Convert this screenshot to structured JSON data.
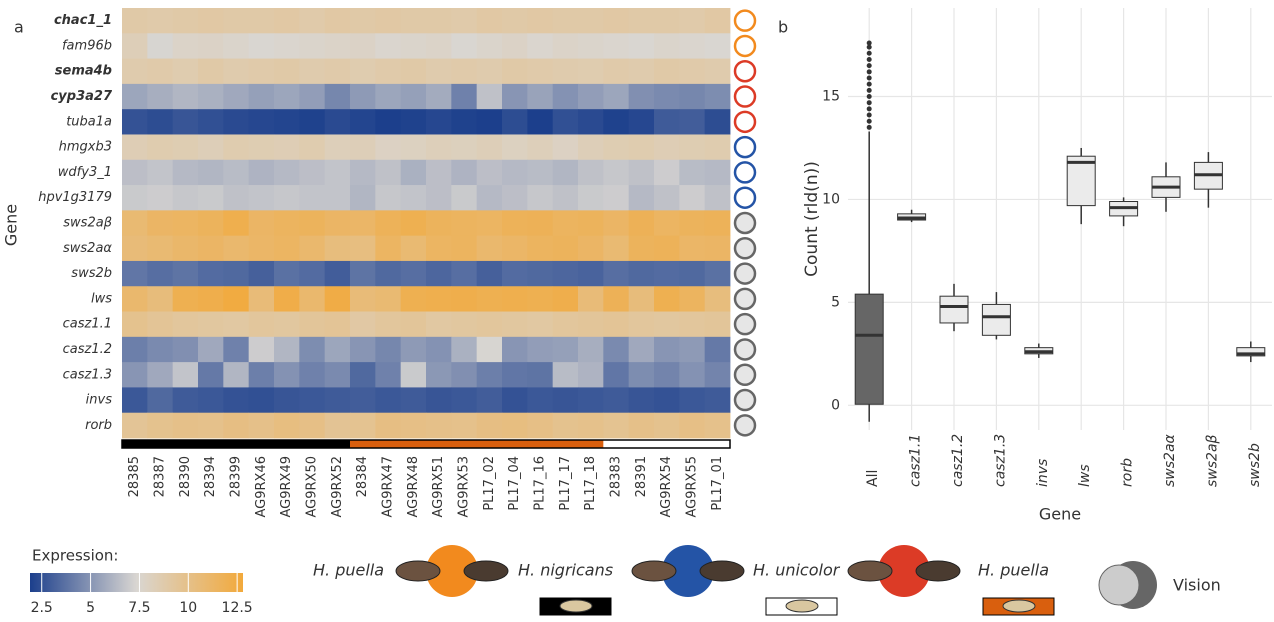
{
  "chart_data": [
    {
      "type": "heatmap",
      "panel_label": "a",
      "ylabel": "Gene",
      "genes": [
        "chac1_1",
        "fam96b",
        "sema4b",
        "cyp3a27",
        "tuba1a",
        "hmgxb3",
        "wdfy3_1",
        "hpv1g3179",
        "sws2aβ",
        "sws2aα",
        "sws2b",
        "lws",
        "casz1.1",
        "casz1.2",
        "casz1.3",
        "invs",
        "rorb"
      ],
      "bold": [
        true,
        false,
        true,
        true,
        false,
        false,
        false,
        false,
        false,
        false,
        false,
        false,
        false,
        false,
        false,
        false,
        false
      ],
      "ring_colors": [
        "#f28a1e",
        "#f28a1e",
        "#dc3b26",
        "#dc3b26",
        "#dc3b26",
        "#2454a6",
        "#2454a6",
        "#2454a6",
        "#666666",
        "#666666",
        "#666666",
        "#666666",
        "#666666",
        "#666666",
        "#666666",
        "#666666",
        "#666666"
      ],
      "samples": [
        "28385",
        "28387",
        "28390",
        "28394",
        "28399",
        "AG9RX46",
        "AG9RX49",
        "AG9RX50",
        "AG9RX52",
        "28384",
        "AG9RX47",
        "AG9RX48",
        "AG9RX51",
        "AG9RX53",
        "PL17_02",
        "PL17_04",
        "PL17_16",
        "PL17_17",
        "PL17_18",
        "28383",
        "28391",
        "AG9RX54",
        "AG9RX55",
        "PL17_01"
      ],
      "sample_colors": [
        "#000000",
        "#000000",
        "#000000",
        "#000000",
        "#000000",
        "#000000",
        "#000000",
        "#000000",
        "#000000",
        "#d95f0e",
        "#d95f0e",
        "#d95f0e",
        "#d95f0e",
        "#d95f0e",
        "#d95f0e",
        "#d95f0e",
        "#d95f0e",
        "#d95f0e",
        "#d95f0e",
        "#ffffff",
        "#ffffff",
        "#ffffff",
        "#ffffff",
        "#ffffff"
      ],
      "values": [
        [
          8.9,
          8.8,
          8.9,
          9.0,
          8.9,
          8.9,
          9.0,
          8.8,
          9.0,
          8.9,
          9.0,
          8.9,
          8.9,
          8.8,
          9.0,
          8.9,
          9.0,
          8.9,
          8.9,
          9.0,
          8.9,
          8.9,
          8.8,
          9.0
        ],
        [
          8.3,
          7.3,
          7.7,
          7.8,
          7.6,
          7.4,
          7.5,
          7.6,
          7.7,
          7.8,
          7.5,
          7.6,
          7.7,
          7.4,
          7.6,
          7.8,
          7.5,
          7.7,
          7.6,
          7.5,
          7.4,
          7.6,
          7.5,
          7.4
        ],
        [
          8.7,
          8.8,
          8.6,
          8.9,
          8.7,
          8.8,
          8.9,
          8.7,
          8.8,
          8.6,
          8.8,
          8.9,
          8.7,
          8.8,
          8.7,
          8.9,
          8.8,
          8.7,
          8.6,
          8.8,
          8.7,
          8.9,
          8.8,
          8.7
        ],
        [
          5.6,
          5.9,
          6.2,
          6.0,
          5.7,
          5.4,
          5.6,
          5.3,
          4.5,
          5.2,
          5.6,
          5.4,
          5.8,
          4.3,
          6.6,
          5.0,
          5.5,
          4.9,
          5.3,
          5.6,
          4.8,
          4.6,
          4.5,
          4.7
        ],
        [
          2.6,
          2.4,
          2.7,
          2.5,
          2.3,
          2.2,
          2.1,
          2.0,
          2.3,
          2.1,
          1.9,
          2.0,
          2.2,
          2.0,
          1.9,
          2.4,
          1.9,
          2.5,
          2.3,
          2.0,
          2.2,
          2.9,
          3.0,
          2.4
        ],
        [
          8.4,
          8.6,
          8.5,
          8.3,
          8.6,
          8.5,
          8.4,
          8.6,
          8.2,
          8.3,
          7.9,
          8.0,
          8.2,
          8.1,
          8.3,
          8.0,
          8.2,
          7.9,
          8.3,
          8.5,
          8.6,
          8.4,
          8.5,
          8.6
        ],
        [
          6.5,
          6.7,
          6.3,
          6.2,
          6.4,
          6.1,
          6.3,
          6.5,
          6.7,
          6.3,
          6.6,
          6.0,
          6.5,
          6.1,
          6.5,
          6.3,
          6.4,
          6.2,
          6.6,
          6.8,
          6.6,
          7.0,
          6.4,
          6.3
        ],
        [
          6.9,
          7.0,
          6.8,
          6.9,
          6.6,
          6.7,
          6.8,
          6.7,
          6.7,
          6.2,
          6.8,
          6.7,
          6.5,
          6.9,
          6.3,
          6.5,
          6.8,
          6.6,
          6.9,
          7.0,
          6.3,
          6.6,
          7.0,
          6.6
        ],
        [
          10.8,
          11.3,
          11.4,
          11.6,
          12.1,
          11.3,
          11.5,
          11.6,
          11.3,
          11.2,
          11.7,
          12.0,
          11.6,
          11.5,
          11.4,
          11.7,
          11.8,
          11.5,
          11.6,
          11.3,
          11.8,
          11.4,
          11.6,
          11.7
        ],
        [
          10.6,
          10.8,
          11.1,
          11.3,
          11.0,
          11.2,
          11.4,
          11.0,
          10.4,
          10.3,
          11.4,
          10.8,
          11.4,
          11.5,
          11.0,
          11.2,
          11.5,
          11.6,
          11.3,
          10.8,
          11.6,
          11.7,
          11.2,
          11.3
        ],
        [
          3.9,
          3.6,
          3.8,
          3.5,
          3.4,
          3.1,
          3.7,
          3.5,
          3.0,
          3.8,
          3.4,
          3.6,
          3.3,
          3.6,
          3.1,
          3.5,
          3.4,
          3.3,
          3.2,
          3.6,
          3.4,
          3.5,
          3.4,
          3.7
        ],
        [
          11.0,
          10.5,
          12.0,
          12.2,
          12.6,
          10.6,
          12.3,
          11.0,
          12.4,
          10.6,
          10.8,
          12.0,
          12.1,
          12.2,
          12.0,
          12.1,
          12.0,
          12.2,
          10.6,
          11.8,
          10.5,
          12.0,
          11.5,
          10.4
        ],
        [
          9.8,
          9.5,
          9.3,
          9.2,
          9.1,
          9.3,
          9.2,
          9.4,
          9.5,
          9.0,
          9.3,
          9.4,
          9.1,
          9.2,
          9.3,
          9.2,
          9.1,
          9.3,
          9.4,
          9.5,
          9.3,
          9.2,
          9.3,
          9.4
        ],
        [
          4.2,
          4.6,
          4.8,
          5.7,
          4.3,
          7.0,
          6.2,
          4.7,
          5.6,
          5.0,
          4.5,
          5.2,
          4.9,
          6.0,
          7.3,
          5.0,
          5.3,
          5.4,
          5.9,
          4.6,
          5.7,
          5.0,
          5.2,
          4.0
        ],
        [
          5.0,
          5.7,
          6.7,
          4.0,
          6.2,
          4.2,
          4.9,
          4.3,
          4.6,
          3.4,
          4.3,
          6.9,
          5.1,
          4.8,
          4.2,
          3.9,
          3.8,
          6.4,
          6.1,
          3.9,
          4.7,
          4.4,
          4.9,
          4.4
        ],
        [
          2.8,
          3.4,
          2.9,
          2.8,
          2.6,
          2.5,
          2.7,
          2.8,
          2.9,
          3.0,
          2.8,
          2.9,
          2.7,
          2.8,
          3.0,
          2.6,
          2.8,
          2.7,
          2.8,
          2.9,
          2.7,
          2.6,
          2.8,
          2.9
        ],
        [
          9.5,
          9.8,
          10.0,
          9.9,
          10.2,
          10.0,
          10.3,
          10.1,
          9.6,
          9.7,
          10.2,
          10.1,
          10.0,
          9.9,
          10.2,
          10.3,
          10.1,
          9.8,
          9.9,
          9.7,
          10.0,
          9.8,
          10.1,
          9.9
        ]
      ],
      "colorbar": {
        "title": "Expression:",
        "lim": [
          1.9,
          12.8
        ],
        "ticks": [
          2.5,
          5.0,
          7.5,
          10.0,
          12.5
        ],
        "colors": [
          "#1c3f8c",
          "#d9d6d2",
          "#f2a93b"
        ]
      },
      "legend": {
        "items": [
          {
            "label": "H. puella",
            "circle": "#f28a1e"
          },
          {
            "label": "H. nigricans",
            "circle": "#2454a6",
            "swatch": "#000000"
          },
          {
            "label": "H. unicolor",
            "circle": "#dc3b26",
            "swatch": "#ffffff"
          },
          {
            "label": "H. puella",
            "swatch": "#d95f0e"
          },
          {
            "label": "Vision",
            "circle": "#666666"
          }
        ]
      }
    },
    {
      "type": "box",
      "panel_label": "b",
      "xlabel": "Gene",
      "ylabel": "Count (rld(n))",
      "categories": [
        "All",
        "casz1.1",
        "casz1.2",
        "casz1.3",
        "invs",
        "lws",
        "rorb",
        "sws2aα",
        "sws2aβ",
        "sws2b"
      ],
      "colors": [
        "#666666",
        "#ebebeb",
        "#ebebeb",
        "#ebebeb",
        "#ebebeb",
        "#ebebeb",
        "#ebebeb",
        "#ebebeb",
        "#ebebeb",
        "#ebebeb"
      ],
      "min": [
        -0.8,
        8.9,
        3.6,
        3.2,
        2.3,
        8.8,
        8.7,
        9.4,
        9.6,
        2.1
      ],
      "q1": [
        0.05,
        9.0,
        4.0,
        3.4,
        2.5,
        9.7,
        9.2,
        10.1,
        10.5,
        2.4
      ],
      "median": [
        3.4,
        9.1,
        4.8,
        4.3,
        2.6,
        11.8,
        9.6,
        10.6,
        11.2,
        2.5
      ],
      "q3": [
        5.4,
        9.3,
        5.3,
        4.9,
        2.8,
        12.1,
        9.9,
        11.1,
        11.8,
        2.8
      ],
      "max": [
        13.3,
        9.5,
        5.9,
        5.5,
        3.0,
        12.5,
        10.1,
        11.8,
        12.3,
        3.1
      ],
      "outliers": [
        13.5,
        13.8,
        14.1,
        14.4,
        14.7,
        15.0,
        15.3,
        15.6,
        15.9,
        16.2,
        16.5,
        16.8,
        17.1,
        17.4,
        17.6
      ],
      "ylim": [
        -1.2,
        19.3
      ],
      "yticks": [
        0,
        5,
        10,
        15
      ],
      "grid": true
    }
  ]
}
